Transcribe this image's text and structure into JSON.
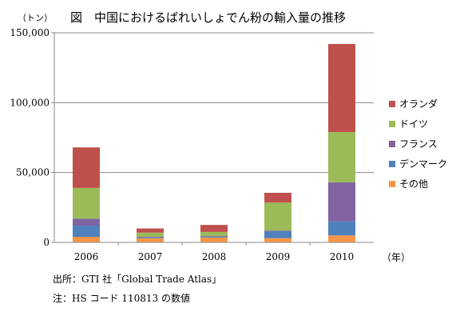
{
  "chart_data": {
    "type": "bar",
    "stacked": true,
    "title": "図　中国におけるばれいしょでん粉の輸入量の推移",
    "ylabel": "（トン）",
    "xlabel": "（年）",
    "ylim": [
      0,
      150000
    ],
    "yticks": [
      0,
      50000,
      100000,
      150000
    ],
    "ytick_labels": [
      "0",
      "50,000",
      "100,000",
      "150,000"
    ],
    "grid": true,
    "legend_position": "right",
    "categories": [
      "2006",
      "2007",
      "2008",
      "2009",
      "2010"
    ],
    "series": [
      {
        "name": "その他",
        "color": "#F79646",
        "values": [
          4000,
          3000,
          3500,
          3000,
          5000
        ]
      },
      {
        "name": "デンマーク",
        "color": "#4F81BD",
        "values": [
          8000,
          500,
          500,
          5000,
          10000
        ]
      },
      {
        "name": "フランス",
        "color": "#8064A2",
        "values": [
          5000,
          500,
          500,
          500,
          28000
        ]
      },
      {
        "name": "ドイツ",
        "color": "#9BBB59",
        "values": [
          22000,
          3000,
          3000,
          20000,
          36000
        ]
      },
      {
        "name": "オランダ",
        "color": "#C0504D",
        "values": [
          29000,
          3000,
          5000,
          7000,
          63000
        ]
      }
    ]
  },
  "source": "出所：GTI 社「Global Trade Atlas」",
  "footnote": "注：HS コード 110813 の数値"
}
